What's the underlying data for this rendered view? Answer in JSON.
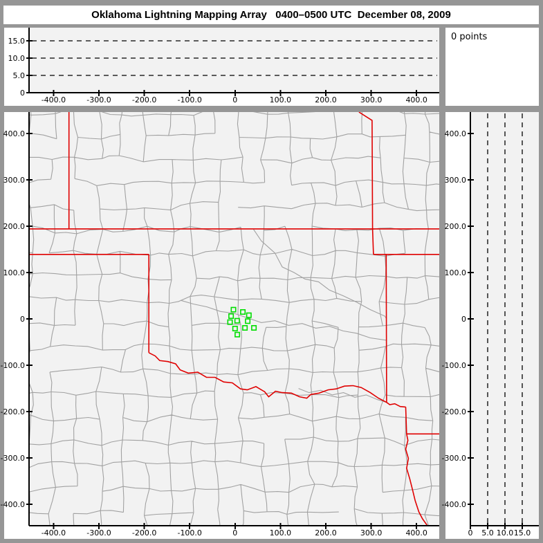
{
  "title": "Oklahoma Lightning Mapping Array   0400–0500 UTC  December 08, 2009",
  "points_label": "0 points",
  "colors": {
    "window_bg": "#969696",
    "panel_bg": "#ffffff",
    "plot_bg": "#f2f2f2",
    "axis": "#000000",
    "county_line": "#a1a1a1",
    "state_line": "#e00000",
    "station_marker": "#00dd00",
    "dashed_grid": "#000000"
  },
  "panels": {
    "top_altitude": {
      "xlim": [
        -454,
        450
      ],
      "ylim": [
        0,
        18.8
      ],
      "x_ticks": [
        {
          "v": -400,
          "label": "-400.0"
        },
        {
          "v": -300,
          "label": "-300.0"
        },
        {
          "v": -200,
          "label": "-200.0"
        },
        {
          "v": -100,
          "label": "-100.0"
        },
        {
          "v": 0,
          "label": "0"
        },
        {
          "v": 100,
          "label": "100.0"
        },
        {
          "v": 200,
          "label": "200.0"
        },
        {
          "v": 300,
          "label": "300.0"
        },
        {
          "v": 400,
          "label": "400.0"
        }
      ],
      "y_ticks": [
        {
          "v": 0,
          "label": "0"
        },
        {
          "v": 5,
          "label": "5.0"
        },
        {
          "v": 10,
          "label": "10.0"
        },
        {
          "v": 15,
          "label": "15.0"
        }
      ],
      "dashed_levels": [
        5,
        10,
        15
      ]
    },
    "map": {
      "xlim": [
        -454,
        450
      ],
      "ylim": [
        -446,
        446
      ],
      "x_ticks": [
        {
          "v": -400,
          "label": "-400.0"
        },
        {
          "v": -300,
          "label": "-300.0"
        },
        {
          "v": -200,
          "label": "-200.0"
        },
        {
          "v": -100,
          "label": "-100.0"
        },
        {
          "v": 0,
          "label": "0"
        },
        {
          "v": 100,
          "label": "100.0"
        },
        {
          "v": 200,
          "label": "200.0"
        },
        {
          "v": 300,
          "label": "300.0"
        },
        {
          "v": 400,
          "label": "400.0"
        }
      ],
      "y_ticks": [
        {
          "v": 400,
          "label": "400.0"
        },
        {
          "v": 300,
          "label": "300.0"
        },
        {
          "v": 200,
          "label": "200.0"
        },
        {
          "v": 100,
          "label": "100.0"
        },
        {
          "v": 0,
          "label": "0"
        },
        {
          "v": -100,
          "label": "-100.0"
        },
        {
          "v": -200,
          "label": "-200.0"
        },
        {
          "v": -300,
          "label": "-300.0"
        },
        {
          "v": -400,
          "label": "-400.0"
        }
      ]
    },
    "right_altitude": {
      "xlim": [
        0,
        19.8
      ],
      "ylim": [
        -446,
        446
      ],
      "x_ticks": [
        {
          "v": 0,
          "label": "0"
        },
        {
          "v": 5,
          "label": "5.0"
        },
        {
          "v": 10,
          "label": "10.0"
        },
        {
          "v": 15,
          "label": "15.0"
        }
      ],
      "y_ticks": [
        {
          "v": 400,
          "label": "400.0"
        },
        {
          "v": 300,
          "label": "300.0"
        },
        {
          "v": 200,
          "label": "200.0"
        },
        {
          "v": 100,
          "label": "100.0"
        },
        {
          "v": 0,
          "label": "0"
        },
        {
          "v": -100,
          "label": "-100.0"
        },
        {
          "v": -200,
          "label": "-200.0"
        },
        {
          "v": -300,
          "label": "-300.0"
        },
        {
          "v": -400,
          "label": "-400.0"
        }
      ],
      "dashed_levels": [
        5,
        10,
        15
      ]
    }
  },
  "map_features": {
    "county_grid": {
      "seed": 42,
      "cell": 34,
      "jitter": 6,
      "skip": 0.12,
      "wiggle": 2.5
    },
    "state_borders": [
      [
        [
          -454,
          194
        ],
        [
          450,
          194
        ]
      ],
      [
        [
          -454,
          139
        ],
        [
          -190,
          139
        ]
      ],
      [
        [
          -190,
          139
        ],
        [
          -190,
          -73
        ]
      ],
      [
        [
          -366,
          446
        ],
        [
          -366,
          194
        ]
      ],
      [
        [
          273,
          446
        ],
        [
          302,
          428
        ],
        [
          303,
          194
        ],
        [
          305,
          139
        ]
      ],
      [
        [
          305,
          139
        ],
        [
          450,
          139
        ]
      ],
      [
        [
          333,
          139
        ],
        [
          334,
          -180
        ]
      ],
      [
        [
          -190,
          -73
        ],
        [
          -176,
          -80
        ],
        [
          -166,
          -90
        ],
        [
          -148,
          -92
        ],
        [
          -131,
          -97
        ],
        [
          -121,
          -110
        ],
        [
          -103,
          -117
        ],
        [
          -82,
          -115
        ],
        [
          -63,
          -126
        ],
        [
          -44,
          -126
        ],
        [
          -25,
          -136
        ],
        [
          -6,
          -138
        ],
        [
          12,
          -151
        ],
        [
          27,
          -153
        ],
        [
          46,
          -146
        ],
        [
          65,
          -157
        ],
        [
          74,
          -168
        ],
        [
          89,
          -156
        ],
        [
          104,
          -159
        ],
        [
          124,
          -160
        ],
        [
          142,
          -168
        ],
        [
          158,
          -171
        ],
        [
          167,
          -163
        ],
        [
          185,
          -160
        ],
        [
          205,
          -153
        ],
        [
          223,
          -151
        ],
        [
          241,
          -145
        ],
        [
          260,
          -144
        ],
        [
          278,
          -148
        ],
        [
          298,
          -159
        ],
        [
          316,
          -171
        ],
        [
          334,
          -180
        ],
        [
          341,
          -185
        ],
        [
          352,
          -183
        ],
        [
          364,
          -189
        ],
        [
          376,
          -190
        ]
      ],
      [
        [
          376,
          -190
        ],
        [
          378,
          -248
        ]
      ],
      [
        [
          378,
          -248
        ],
        [
          450,
          -248
        ]
      ],
      [
        [
          378,
          -248
        ],
        [
          381,
          -262
        ],
        [
          376,
          -281
        ],
        [
          382,
          -301
        ],
        [
          378,
          -322
        ],
        [
          385,
          -345
        ],
        [
          391,
          -368
        ],
        [
          397,
          -392
        ],
        [
          405,
          -416
        ],
        [
          413,
          -431
        ],
        [
          424,
          -446
        ]
      ]
    ],
    "rivers": [
      [
        [
          40,
          194
        ],
        [
          58,
          168
        ],
        [
          88,
          142
        ],
        [
          104,
          112
        ],
        [
          130,
          100
        ],
        [
          154,
          86
        ],
        [
          184,
          80
        ],
        [
          208,
          62
        ],
        [
          238,
          50
        ],
        [
          268,
          36
        ],
        [
          298,
          20
        ],
        [
          330,
          6
        ],
        [
          334,
          0
        ]
      ],
      [
        [
          -120,
          40
        ],
        [
          -92,
          32
        ],
        [
          -62,
          26
        ],
        [
          -32,
          16
        ],
        [
          -2,
          12
        ],
        [
          28,
          2
        ],
        [
          58,
          -8
        ],
        [
          88,
          -4
        ],
        [
          118,
          -14
        ],
        [
          148,
          -10
        ],
        [
          178,
          -20
        ],
        [
          208,
          -16
        ],
        [
          238,
          -26
        ],
        [
          268,
          -31
        ],
        [
          298,
          -41
        ],
        [
          333,
          -46
        ]
      ],
      [
        [
          140,
          -150
        ],
        [
          163,
          -159
        ],
        [
          189,
          -154
        ],
        [
          214,
          -164
        ],
        [
          239,
          -159
        ],
        [
          264,
          -169
        ],
        [
          289,
          -164
        ],
        [
          314,
          -174
        ],
        [
          334,
          -180
        ]
      ]
    ],
    "stations_km": [
      [
        -3.5,
        19.9
      ],
      [
        -8.7,
        6.0
      ],
      [
        17.2,
        14.9
      ],
      [
        30.5,
        7.9
      ],
      [
        -11.1,
        -7.0
      ],
      [
        4.6,
        -4.0
      ],
      [
        27.9,
        -4.9
      ],
      [
        0.0,
        -20.9
      ],
      [
        21.8,
        -19.4
      ],
      [
        41.6,
        -19.4
      ],
      [
        5.0,
        -33.9
      ]
    ]
  },
  "chart_data": {
    "type": "scatter",
    "title": "Oklahoma Lightning Mapping Array   0400–0500 UTC  December 08, 2009",
    "lightning_points_count": 0,
    "station_markers_east_north_km": [
      [
        -3.5,
        19.9
      ],
      [
        -8.7,
        6.0
      ],
      [
        17.2,
        14.9
      ],
      [
        30.5,
        7.9
      ],
      [
        -11.1,
        -7.0
      ],
      [
        4.6,
        -4.0
      ],
      [
        27.9,
        -4.9
      ],
      [
        0.0,
        -20.9
      ],
      [
        21.8,
        -19.4
      ],
      [
        41.6,
        -19.4
      ],
      [
        5.0,
        -33.9
      ]
    ],
    "panels": [
      {
        "name": "altitude-vs-east-west",
        "xlabel_ticks": [
          -400,
          -300,
          -200,
          -100,
          0,
          100,
          200,
          300,
          400
        ],
        "ylabel_ticks": [
          0,
          5,
          10,
          15
        ],
        "dashed_gridlines_km": [
          5,
          10,
          15
        ],
        "points": []
      },
      {
        "name": "plan-view-map",
        "xlim": [
          -454,
          450
        ],
        "ylim": [
          -446,
          446
        ],
        "points": []
      },
      {
        "name": "altitude-vs-north-south",
        "xlabel_ticks": [
          0,
          5,
          10,
          15
        ],
        "ylabel_ticks": [
          400,
          300,
          200,
          100,
          0,
          -100,
          -200,
          -300,
          -400
        ],
        "dashed_gridlines_km": [
          5,
          10,
          15
        ],
        "points": []
      }
    ],
    "legend_position": "none",
    "grid": "dashed-altitude-only"
  }
}
